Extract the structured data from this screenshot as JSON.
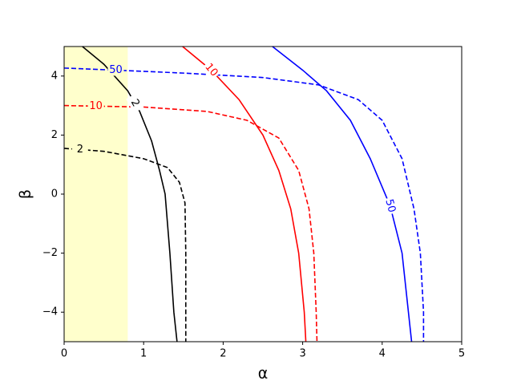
{
  "chart_data": {
    "type": "line",
    "x_label": "α",
    "y_label": "β",
    "xlim": [
      0,
      5
    ],
    "ylim": [
      -5,
      5
    ],
    "xticks": [
      0,
      1,
      2,
      3,
      4,
      5
    ],
    "yticks": [
      {
        "value": -4,
        "label": "−4"
      },
      {
        "value": -2,
        "label": "−2"
      },
      0,
      2,
      4
    ],
    "span": {
      "x": [
        0,
        0.8
      ],
      "color": "#ffffcc"
    },
    "series": [
      {
        "label": "2",
        "color": "#000000",
        "dashed": false,
        "x": [
          0.23,
          0.5,
          0.8,
          0.95,
          1.1,
          1.2,
          1.27,
          1.33,
          1.38,
          1.42
        ],
        "values": [
          5,
          4.4,
          3.5,
          2.8,
          1.8,
          0.8,
          0,
          -2,
          -4,
          -5
        ]
      },
      {
        "label": "2",
        "color": "#000000",
        "dashed": true,
        "x": [
          0,
          0.5,
          1,
          1.3,
          1.45,
          1.52,
          1.53,
          1.53,
          1.53
        ],
        "values": [
          1.55,
          1.45,
          1.2,
          0.9,
          0.4,
          -0.3,
          -2,
          -4,
          -5
        ]
      },
      {
        "label": "10",
        "color": "#ff0000",
        "dashed": false,
        "x": [
          1.49,
          1.85,
          2.2,
          2.5,
          2.7,
          2.85,
          2.95,
          3.02,
          3.04
        ],
        "values": [
          5,
          4.2,
          3.2,
          2,
          0.8,
          -0.5,
          -2,
          -4,
          -5
        ]
      },
      {
        "label": "10",
        "color": "#ff0000",
        "dashed": true,
        "x": [
          0,
          1,
          1.8,
          2.3,
          2.7,
          2.95,
          3.08,
          3.14,
          3.17,
          3.18
        ],
        "values": [
          3.0,
          2.95,
          2.8,
          2.5,
          1.9,
          0.8,
          -0.5,
          -2,
          -4,
          -5
        ]
      },
      {
        "label": "50",
        "color": "#0000ff",
        "dashed": false,
        "x": [
          2.62,
          3.0,
          3.3,
          3.6,
          3.85,
          4.1,
          4.25,
          4.33,
          4.37
        ],
        "values": [
          5,
          4.2,
          3.5,
          2.5,
          1.2,
          -0.4,
          -2,
          -4,
          -5
        ]
      },
      {
        "label": "50",
        "color": "#0000ff",
        "dashed": true,
        "x": [
          0,
          0.65,
          1.5,
          2.5,
          3.2,
          3.7,
          4.0,
          4.25,
          4.4,
          4.48,
          4.52,
          4.52
        ],
        "values": [
          4.27,
          4.2,
          4.1,
          3.95,
          3.7,
          3.2,
          2.5,
          1.2,
          -0.5,
          -2,
          -4,
          -5
        ]
      }
    ]
  }
}
